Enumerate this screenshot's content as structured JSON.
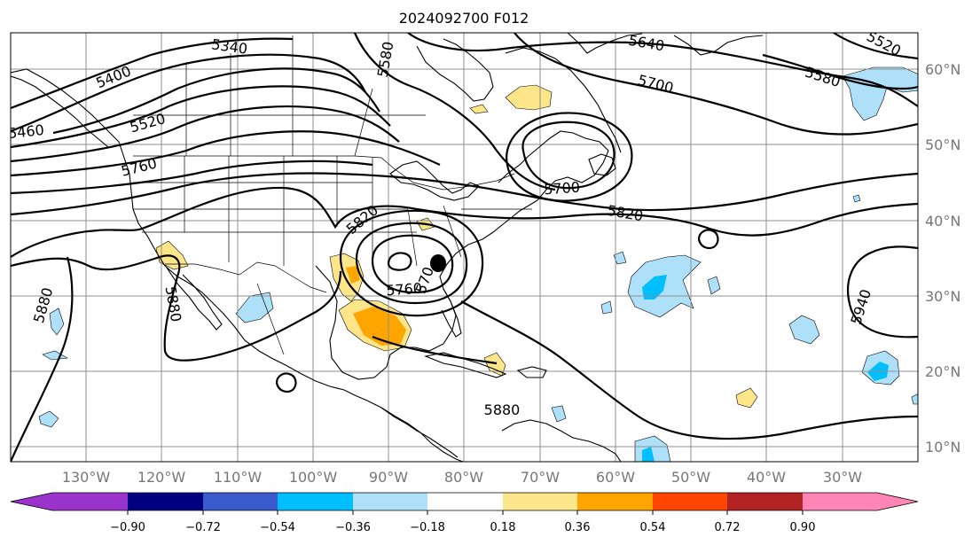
{
  "title": "2024092700 F012",
  "lon_labels": [
    "130°W",
    "120°W",
    "110°W",
    "100°W",
    "90°W",
    "80°W",
    "70°W",
    "60°W",
    "50°W",
    "40°W",
    "30°W"
  ],
  "lat_labels": [
    "60°N",
    "50°N",
    "40°N",
    "30°N",
    "20°N",
    "10°N"
  ],
  "contour_labels": [
    "5340",
    "5400",
    "5460",
    "5520",
    "5580",
    "5640",
    "5520",
    "5700",
    "5580",
    "5760",
    "5700",
    "5820",
    "5820",
    "5760",
    "570",
    "5880",
    "5880",
    "5940",
    "5880"
  ],
  "colorbar": {
    "ticks": [
      "−0.90",
      "−0.72",
      "−0.54",
      "−0.36",
      "−0.18",
      "0.18",
      "0.36",
      "0.54",
      "0.72",
      "0.90"
    ],
    "colors": [
      "#9a33cc",
      "#000080",
      "#3a5bcd",
      "#00bfff",
      "#aee0fa",
      "#ffffff",
      "#fde68a",
      "#ffa500",
      "#ff4500",
      "#b22222",
      "#ff85b4"
    ]
  },
  "colors": {
    "light_blue": "#aee0fa",
    "blue": "#00bfff",
    "light_yellow": "#fde68a",
    "orange": "#ffa500",
    "grid": "#8f8f8f",
    "tick_text": "#777777"
  }
}
